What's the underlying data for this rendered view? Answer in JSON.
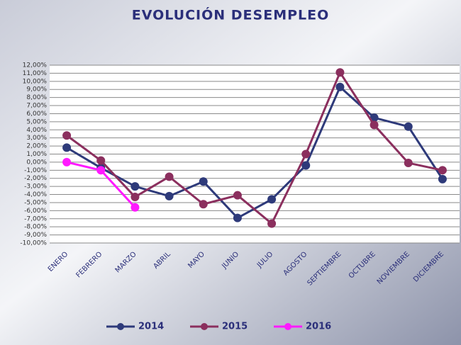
{
  "chart_data": {
    "type": "line",
    "title": "EVOLUCIÓN DESEMPLEO",
    "categories": [
      "ENERO",
      "FEBRERO",
      "MARZO",
      "ABRIL",
      "MAYO",
      "JUNIO",
      "JULIO",
      "AGOSTO",
      "SEPTIEMBRE",
      "OCTUBRE",
      "NOVIEMBRE",
      "DICIEMBRE"
    ],
    "series": [
      {
        "name": "2014",
        "color": "#2e3a7a",
        "values": [
          1.8,
          -0.7,
          -3.0,
          -4.2,
          -2.4,
          -6.9,
          -4.6,
          -0.4,
          9.3,
          5.5,
          4.4,
          -2.1
        ]
      },
      {
        "name": "2015",
        "color": "#8b2f5e",
        "values": [
          3.3,
          0.2,
          -4.3,
          -1.8,
          -5.2,
          -4.1,
          -7.6,
          1.0,
          11.1,
          4.6,
          -0.1,
          -1.0
        ]
      },
      {
        "name": "2016",
        "color": "#ff1aff",
        "values": [
          0.0,
          -1.0,
          -5.6,
          null,
          null,
          null,
          null,
          null,
          null,
          null,
          null,
          null
        ]
      }
    ],
    "ylim": [
      -10,
      12
    ],
    "yticks": [
      {
        "value": 12,
        "label": "12,00%"
      },
      {
        "value": 11,
        "label": "11,00%"
      },
      {
        "value": 10,
        "label": "10,00%"
      },
      {
        "value": 9,
        "label": "9,00%"
      },
      {
        "value": 8,
        "label": "8,00%"
      },
      {
        "value": 7,
        "label": "7,00%"
      },
      {
        "value": 6,
        "label": "6,00%"
      },
      {
        "value": 5,
        "label": "5,00%"
      },
      {
        "value": 4,
        "label": "4,00%"
      },
      {
        "value": 3,
        "label": "3,00%"
      },
      {
        "value": 2,
        "label": "2,00%"
      },
      {
        "value": 1,
        "label": "1,00%"
      },
      {
        "value": 0,
        "label": "0,00%"
      },
      {
        "value": -1,
        "label": "-1,00%"
      },
      {
        "value": -2,
        "label": "-2,00%"
      },
      {
        "value": -3,
        "label": "-3,00%"
      },
      {
        "value": -4,
        "label": "-4,00%"
      },
      {
        "value": -5,
        "label": "-5,00%"
      },
      {
        "value": -6,
        "label": "-6,00%"
      },
      {
        "value": -7,
        "label": "-7,00%"
      },
      {
        "value": -8,
        "label": "-8,00%"
      },
      {
        "value": -9,
        "label": "-9,00%"
      },
      {
        "value": -10,
        "label": "-10,00%"
      }
    ],
    "grid": true
  }
}
